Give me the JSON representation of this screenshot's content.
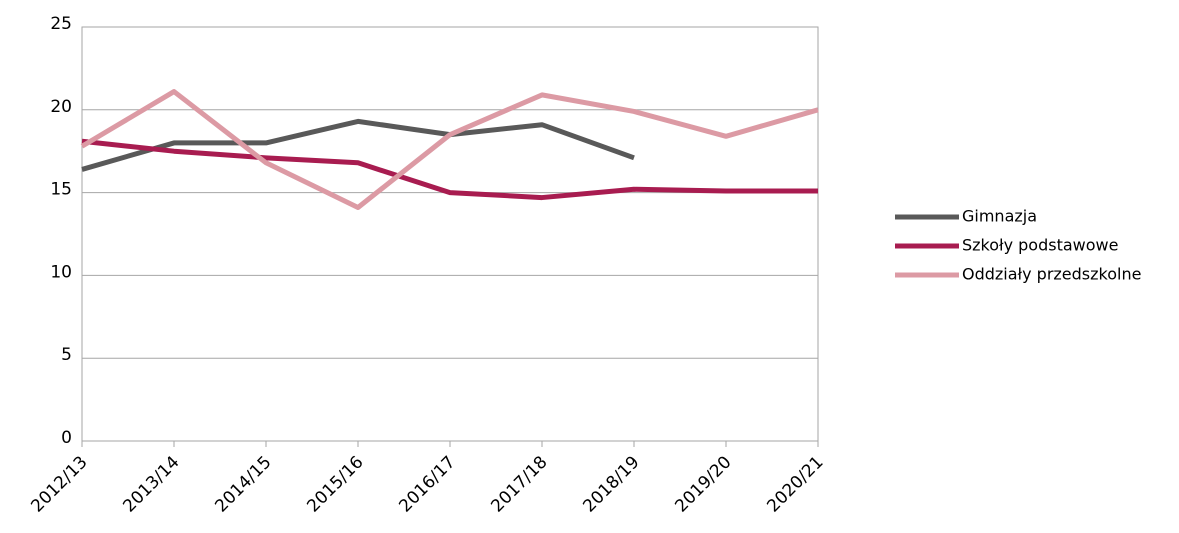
{
  "chart_data": {
    "type": "line",
    "categories": [
      "2012/13",
      "2013/14",
      "2014/15",
      "2015/16",
      "2016/17",
      "2017/18",
      "2018/19",
      "2019/20",
      "2020/21"
    ],
    "series": [
      {
        "name": "Gimnazja",
        "color": "#595959",
        "values": [
          16.4,
          18.0,
          18.0,
          19.3,
          18.5,
          19.1,
          17.1,
          null,
          null
        ]
      },
      {
        "name": "Szkoły podstawowe",
        "color": "#a81c50",
        "values": [
          18.1,
          17.5,
          17.1,
          16.8,
          15.0,
          14.7,
          15.2,
          15.1,
          15.1
        ]
      },
      {
        "name": "Oddziały przedszkolne",
        "color": "#dc9aa4",
        "values": [
          17.8,
          21.1,
          16.8,
          14.1,
          18.5,
          20.9,
          19.9,
          18.4,
          20.0
        ]
      }
    ],
    "ylim": [
      0,
      25
    ],
    "yticks": [
      0,
      5,
      10,
      15,
      20,
      25
    ],
    "grid": true,
    "legend": "right"
  }
}
